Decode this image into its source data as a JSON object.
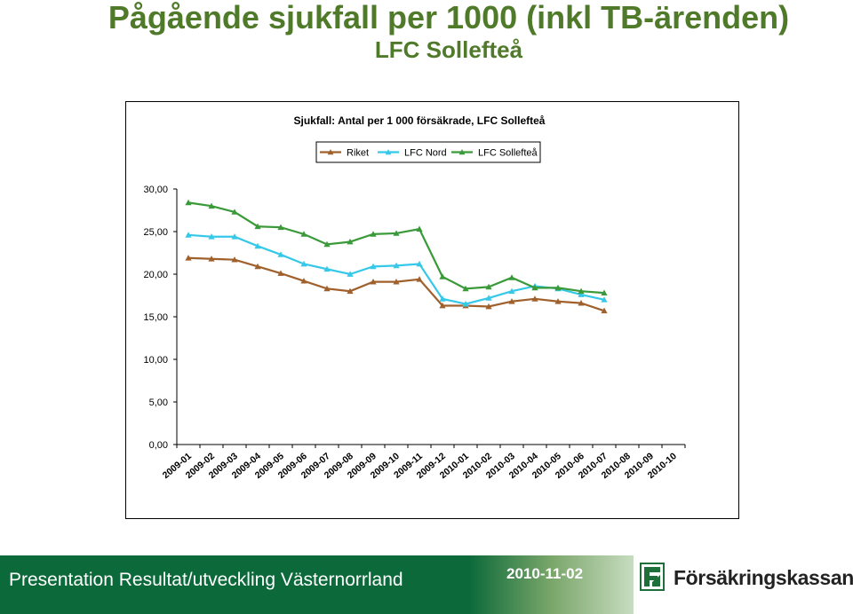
{
  "page": {
    "title": "Pågående sjukfall per 1000 (inkl TB-ärenden)",
    "subtitle": "LFC Sollefteå"
  },
  "footer": {
    "text": "Presentation Resultat/utveckling Västernorrland",
    "date": "2010-11-02",
    "logo_text": "Försäkringskassan"
  },
  "chart_data": {
    "type": "line",
    "title": "Sjukfall: Antal per 1 000 försäkrade, LFC Sollefteå",
    "legend_position": "top-center",
    "grid": false,
    "ylim": [
      0,
      30
    ],
    "y_ticks": [
      "0,00",
      "5,00",
      "10,00",
      "15,00",
      "20,00",
      "25,00",
      "30,00"
    ],
    "categories": [
      "2009-01",
      "2009-02",
      "2009-03",
      "2009-04",
      "2009-05",
      "2009-06",
      "2009-07",
      "2009-08",
      "2009-09",
      "2009-10",
      "2009-11",
      "2009-12",
      "2010-01",
      "2010-02",
      "2010-03",
      "2010-04",
      "2010-05",
      "2010-06",
      "2010-07",
      "2010-08",
      "2010-09",
      "2010-10"
    ],
    "series": [
      {
        "name": "Riket",
        "color": "#a0602c",
        "marker": "triangle",
        "values": [
          21.9,
          21.8,
          21.7,
          20.9,
          20.1,
          19.2,
          18.3,
          18.0,
          19.1,
          19.1,
          19.4,
          16.3,
          16.3,
          16.2,
          16.8,
          17.1,
          16.8,
          16.6,
          15.7,
          null,
          null,
          null
        ]
      },
      {
        "name": "LFC Nord",
        "color": "#35c8e8",
        "marker": "triangle",
        "values": [
          24.6,
          24.4,
          24.4,
          23.3,
          22.3,
          21.2,
          20.6,
          20.0,
          20.9,
          21.0,
          21.2,
          17.1,
          16.5,
          17.2,
          18.0,
          18.6,
          18.3,
          17.6,
          17.0,
          null,
          null,
          null
        ]
      },
      {
        "name": "LFC Sollefteå",
        "color": "#3a9a3a",
        "marker": "triangle",
        "values": [
          28.4,
          28.0,
          27.3,
          25.6,
          25.5,
          24.7,
          23.5,
          23.8,
          24.7,
          24.8,
          25.3,
          19.7,
          18.3,
          18.5,
          19.6,
          18.4,
          18.4,
          18.0,
          17.8,
          null,
          null,
          null
        ]
      }
    ]
  }
}
